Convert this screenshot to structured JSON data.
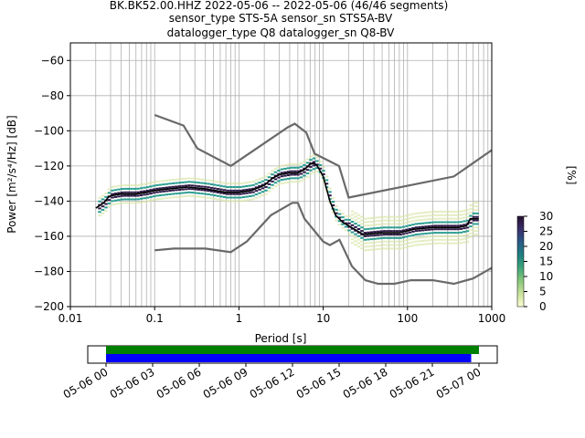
{
  "header": {
    "line1": "BK.BK52.00.HHZ   2022-05-06 -- 2022-05-06  (46/46 segments)",
    "line2": "sensor_type STS-5A sensor_sn STS5A-BV",
    "line3": "datalogger_type Q8 datalogger_sn Q8-BV"
  },
  "chart_data": [
    {
      "type": "line",
      "xlabel": "Period [s]",
      "ylabel": "Power [m²/s⁴/Hz] [dB]",
      "xscale": "log",
      "xlim": [
        0.01,
        1000
      ],
      "ylim": [
        -200,
        -50
      ],
      "x_ticks": [
        {
          "value": 0.01,
          "label": "0.01"
        },
        {
          "value": 0.1,
          "label": "0.1"
        },
        {
          "value": 1,
          "label": "1"
        },
        {
          "value": 10,
          "label": "10"
        },
        {
          "value": 100,
          "label": "100"
        },
        {
          "value": 1000,
          "label": "1000"
        }
      ],
      "y_ticks": [
        -60,
        -80,
        -100,
        -120,
        -140,
        -160,
        -180,
        -200
      ],
      "grid": true,
      "colors": {
        "noise_model": "#696969",
        "mean": "#000000",
        "ppsd_low": "#d8e6a6",
        "ppsd_mid": "#2a9d8f",
        "ppsd_high": "#2e1a47"
      },
      "series": [
        {
          "role": "high-noise-model",
          "points": [
            [
              0.1,
              -91
            ],
            [
              0.22,
              -97
            ],
            [
              0.32,
              -110
            ],
            [
              0.8,
              -120
            ],
            [
              3.8,
              -98
            ],
            [
              4.6,
              -96
            ],
            [
              6.3,
              -101
            ],
            [
              7.9,
              -113
            ],
            [
              15.4,
              -120
            ],
            [
              20,
              -138
            ],
            [
              354.8,
              -126
            ],
            [
              1000,
              -111
            ]
          ]
        },
        {
          "role": "low-noise-model",
          "points": [
            [
              0.1,
              -168
            ],
            [
              0.17,
              -167
            ],
            [
              0.4,
              -167
            ],
            [
              0.8,
              -169
            ],
            [
              1.24,
              -163
            ],
            [
              2.4,
              -148
            ],
            [
              4.3,
              -141
            ],
            [
              5,
              -141
            ],
            [
              6,
              -150
            ],
            [
              10,
              -163
            ],
            [
              12,
              -165
            ],
            [
              15.6,
              -162
            ],
            [
              21.9,
              -177
            ],
            [
              31.6,
              -185
            ],
            [
              45,
              -187
            ],
            [
              70,
              -187
            ],
            [
              110,
              -185
            ],
            [
              200,
              -185
            ],
            [
              354.8,
              -187
            ],
            [
              600,
              -184
            ],
            [
              1000,
              -178
            ]
          ]
        },
        {
          "role": "mean",
          "points": [
            [
              0.02,
              -144
            ],
            [
              0.025,
              -141
            ],
            [
              0.028,
              -138
            ],
            [
              0.03,
              -137
            ],
            [
              0.04,
              -136
            ],
            [
              0.06,
              -136
            ],
            [
              0.08,
              -135
            ],
            [
              0.1,
              -134
            ],
            [
              0.15,
              -133
            ],
            [
              0.25,
              -132
            ],
            [
              0.4,
              -133
            ],
            [
              0.7,
              -135
            ],
            [
              1,
              -135
            ],
            [
              1.4,
              -134
            ],
            [
              2,
              -131
            ],
            [
              2.5,
              -127
            ],
            [
              3,
              -125
            ],
            [
              4,
              -124
            ],
            [
              5,
              -124
            ],
            [
              6,
              -122
            ],
            [
              7,
              -119
            ],
            [
              7.8,
              -118.5
            ],
            [
              8.5,
              -120
            ],
            [
              10,
              -126
            ],
            [
              12,
              -140
            ],
            [
              14,
              -148
            ],
            [
              17,
              -152
            ],
            [
              20,
              -154
            ],
            [
              30,
              -159
            ],
            [
              50,
              -158
            ],
            [
              80,
              -158
            ],
            [
              120,
              -156
            ],
            [
              200,
              -155
            ],
            [
              400,
              -155
            ],
            [
              500,
              -154
            ],
            [
              560,
              -150
            ],
            [
              700,
              -150
            ]
          ]
        }
      ],
      "colorbar": {
        "label": "[%]",
        "range": [
          0,
          30
        ],
        "ticks": [
          0,
          5,
          10,
          15,
          20,
          25,
          30
        ],
        "colors": [
          "#fefed2",
          "#cbe29b",
          "#86c77a",
          "#3fa57a",
          "#1f7f80",
          "#2a5a86",
          "#3b2f6b",
          "#26102f"
        ]
      }
    },
    {
      "type": "timeline",
      "xlim": [
        "05-06 00",
        "05-07 00"
      ],
      "x_ticks": [
        "05-06 00",
        "05-06 03",
        "05-06 06",
        "05-06 09",
        "05-06 12",
        "05-06 15",
        "05-06 18",
        "05-06 21",
        "05-07 00"
      ],
      "bars": [
        {
          "role": "data-coverage",
          "color": "#008000",
          "start_hours": 0.0,
          "end_hours": 24.0
        },
        {
          "role": "psd-coverage",
          "color": "#0000ff",
          "start_hours": 0.0,
          "end_hours": 23.5
        }
      ]
    }
  ]
}
